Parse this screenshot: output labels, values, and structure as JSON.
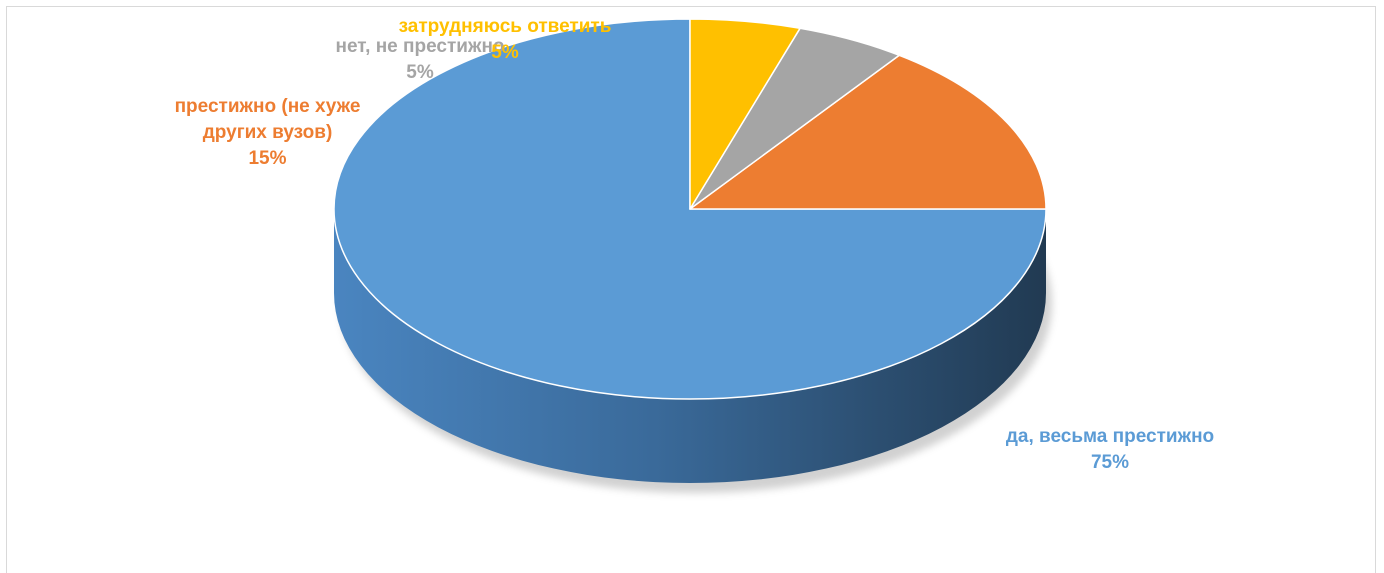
{
  "chart_data": {
    "type": "pie",
    "style": "3d",
    "slices": [
      {
        "label": "да, весьма престижно",
        "value": 75,
        "value_label": "75%",
        "color": "#5B9BD5"
      },
      {
        "label": "престижно (не хуже других вузов)",
        "value": 15,
        "value_label": "15%",
        "color": "#ED7D31"
      },
      {
        "label": "нет, не престижно",
        "value": 5,
        "value_label": "5%",
        "color": "#A5A5A5"
      },
      {
        "label": "затрудняюсь ответить",
        "value": 5,
        "value_label": "5%",
        "color": "#FFC000"
      }
    ]
  }
}
